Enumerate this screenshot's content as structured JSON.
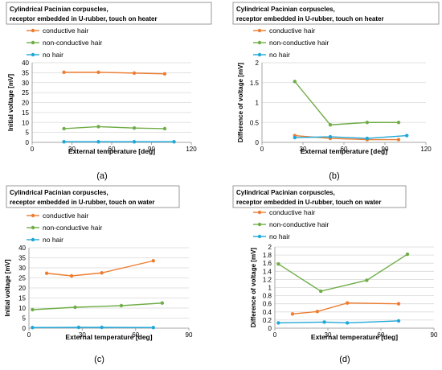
{
  "colors": {
    "conductive": "#ED7D31",
    "non_conductive": "#70AD47",
    "no_hair": "#1FA7D8",
    "axis": "#a6a6a6",
    "grid": "#d9d9d9",
    "text": "#000000"
  },
  "chart_data": [
    {
      "panel_label": "(a)",
      "type": "line",
      "title": [
        "Cylindrical Pacinian corpuscles,",
        "receptor embedded in U-rubber, touch on heater"
      ],
      "xlabel": "External temperature  [deg]",
      "ylabel": "Initial voltage  [mV]",
      "xlim": [
        0,
        120
      ],
      "ylim": [
        0,
        40
      ],
      "xticks": [
        0,
        30,
        60,
        90,
        120
      ],
      "yticks": [
        0,
        5,
        10,
        15,
        20,
        25,
        30,
        35,
        40
      ],
      "tick_labels_x": [
        "0",
        "30",
        "60",
        "90",
        "120"
      ],
      "tick_labels_y": [
        "0",
        "5",
        "10",
        "15",
        "20",
        "25",
        "30",
        "35",
        "40"
      ],
      "grid": "horizontal",
      "series": [
        {
          "name": "conductive hair",
          "color_key": "conductive",
          "x": [
            24,
            50,
            77,
            100
          ],
          "y": [
            35.2,
            35.2,
            34.8,
            34.4
          ]
        },
        {
          "name": "non-conductive hair",
          "color_key": "non_conductive",
          "x": [
            24,
            50,
            77,
            100
          ],
          "y": [
            6.9,
            7.9,
            7.2,
            6.9
          ]
        },
        {
          "name": "no hair",
          "color_key": "no_hair",
          "x": [
            24,
            50,
            77,
            107
          ],
          "y": [
            0.3,
            0.3,
            0.3,
            0.3
          ]
        }
      ]
    },
    {
      "panel_label": "(b)",
      "type": "line",
      "title": [
        "Cylindrical Pacinian corpuscles,",
        "receptor embedded in U-rubber, touch on heater"
      ],
      "xlabel": "External temperature  [deg]",
      "ylabel": "Difference of voltage  [mV]",
      "xlim": [
        0,
        120
      ],
      "ylim": [
        0,
        2
      ],
      "xticks": [
        0,
        30,
        60,
        90,
        120
      ],
      "yticks": [
        0,
        0.5,
        1,
        1.5,
        2
      ],
      "tick_labels_x": [
        "0",
        "30",
        "60",
        "90",
        "120"
      ],
      "tick_labels_y": [
        "0",
        "0.5",
        "1",
        "1.5",
        "2"
      ],
      "grid": "horizontal",
      "series": [
        {
          "name": "conductive hair",
          "color_key": "conductive",
          "x": [
            24,
            50,
            77,
            100
          ],
          "y": [
            0.17,
            0.1,
            0.07,
            0.07
          ]
        },
        {
          "name": "non-conductive hair",
          "color_key": "non_conductive",
          "x": [
            24,
            50,
            77,
            100
          ],
          "y": [
            1.53,
            0.44,
            0.5,
            0.5
          ]
        },
        {
          "name": "no hair",
          "color_key": "no_hair",
          "x": [
            24,
            50,
            77,
            106
          ],
          "y": [
            0.12,
            0.14,
            0.1,
            0.17
          ]
        }
      ]
    },
    {
      "panel_label": "(c)",
      "type": "line",
      "title": [
        "Cylindrical Pacinian corpuscles,",
        "receptor embedded in U-rubber, touch on water"
      ],
      "xlabel": "External temperature  [deg]",
      "ylabel": "Initial voltage  [mV]",
      "xlim": [
        0,
        90
      ],
      "ylim": [
        0,
        40
      ],
      "xticks": [
        0,
        30,
        60,
        90
      ],
      "yticks": [
        0,
        5,
        10,
        15,
        20,
        25,
        30,
        35,
        40
      ],
      "tick_labels_x": [
        "0",
        "30",
        "60",
        "90"
      ],
      "tick_labels_y": [
        "0",
        "5",
        "10",
        "15",
        "20",
        "25",
        "30",
        "35",
        "40"
      ],
      "grid": "horizontal",
      "series": [
        {
          "name": "conductive hair",
          "color_key": "conductive",
          "x": [
            10,
            24,
            41,
            70
          ],
          "y": [
            27.3,
            26,
            27.5,
            33.5
          ]
        },
        {
          "name": "non-conductive hair",
          "color_key": "non_conductive",
          "x": [
            2,
            26,
            52,
            75
          ],
          "y": [
            9.2,
            10.4,
            11.2,
            12.5
          ]
        },
        {
          "name": "no hair",
          "color_key": "no_hair",
          "x": [
            2,
            28,
            41,
            70
          ],
          "y": [
            0.3,
            0.4,
            0.4,
            0.3
          ]
        }
      ]
    },
    {
      "panel_label": "(d)",
      "type": "line",
      "title": [
        "Cylindrical Pacinian corpuscles,",
        "receptor embedded in U-rubber, touch on water"
      ],
      "xlabel": "External temperature  [deg]",
      "ylabel": "Difference of voltage  [mV]",
      "xlim": [
        0,
        90
      ],
      "ylim": [
        0,
        2
      ],
      "xticks": [
        0,
        30,
        60,
        90
      ],
      "yticks": [
        0,
        0.2,
        0.4,
        0.6,
        0.8,
        1,
        1.2,
        1.4,
        1.6,
        1.8,
        2
      ],
      "tick_labels_x": [
        "0",
        "30",
        "60",
        "90"
      ],
      "tick_labels_y": [
        "0",
        "0.2",
        "0.4",
        "0.6",
        "0.8",
        "1",
        "1.2",
        "1.4",
        "1.6",
        "1.8",
        "2"
      ],
      "grid": "horizontal",
      "series": [
        {
          "name": "conductive hair",
          "color_key": "conductive",
          "x": [
            10,
            24,
            41,
            70
          ],
          "y": [
            0.35,
            0.41,
            0.62,
            0.6
          ]
        },
        {
          "name": "non-conductive hair",
          "color_key": "non_conductive",
          "x": [
            2,
            26,
            52,
            75
          ],
          "y": [
            1.58,
            0.91,
            1.18,
            1.82
          ]
        },
        {
          "name": "no hair",
          "color_key": "no_hair",
          "x": [
            2,
            28,
            41,
            70
          ],
          "y": [
            0.13,
            0.15,
            0.13,
            0.18
          ]
        }
      ]
    }
  ]
}
